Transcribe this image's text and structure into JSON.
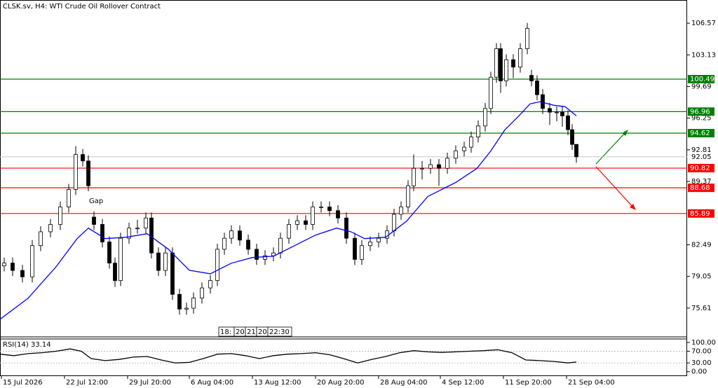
{
  "chart_data": {
    "type": "candlestick",
    "title": "CLSK.sv, H4:  WTI Crude Oil Rollover Contract",
    "xlim": [
      0,
      490
    ],
    "xticks": [
      {
        "value": 1,
        "label": "15 Jul 2026"
      },
      {
        "value": 46,
        "label": "22 Jul 12:00"
      },
      {
        "value": 91,
        "label": "29 Jul 20:00"
      },
      {
        "value": 135,
        "label": "6 Aug 04:00"
      },
      {
        "value": 180,
        "label": "13 Aug 12:00"
      },
      {
        "value": 225,
        "label": "20 Aug 20:00"
      },
      {
        "value": 270,
        "label": "28 Aug 04:00"
      },
      {
        "value": 314,
        "label": "4 Sep 12:00"
      },
      {
        "value": 359,
        "label": "11 Sep 20:00"
      },
      {
        "value": 404,
        "label": "21 Sep 04:00"
      }
    ],
    "ylim": [
      72.48,
      109.09
    ],
    "yticks": [
      106.57,
      103.13,
      99.69,
      96.25,
      92.81,
      89.37,
      82.49,
      79.05,
      75.61
    ],
    "grid": false,
    "candles": {
      "color": "#000000",
      "x": [
        3,
        9,
        16,
        23,
        29,
        36,
        43,
        49,
        54,
        59,
        63,
        67,
        73,
        78,
        82,
        86,
        92,
        98,
        104,
        108,
        113,
        118,
        123,
        128,
        133,
        138,
        144,
        150,
        155,
        160,
        165,
        171,
        177,
        183,
        189,
        195,
        200,
        206,
        212,
        218,
        223,
        229,
        235,
        241,
        247,
        253,
        258,
        264,
        270,
        276,
        281,
        286,
        291,
        295,
        301,
        307,
        313,
        319,
        325,
        331,
        336,
        341,
        346,
        350,
        354,
        357,
        361,
        366,
        371,
        376,
        379,
        383,
        387,
        392,
        397,
        401,
        405,
        408,
        411
      ],
      "open": [
        80.2,
        80.5,
        79.7,
        79.0,
        82.4,
        83.9,
        84.7,
        86.6,
        88.5,
        92.3,
        91.6,
        85.5,
        84.7,
        82.8,
        80.5,
        78.6,
        83.2,
        84.3,
        84.3,
        85.4,
        81.6,
        79.7,
        81.6,
        77.1,
        75.5,
        75.6,
        76.7,
        77.8,
        78.6,
        82.0,
        83.2,
        84.0,
        83.0,
        82.0,
        80.9,
        81.3,
        81.6,
        83.2,
        84.7,
        85.1,
        84.7,
        86.6,
        86.6,
        86.2,
        85.4,
        83.2,
        80.9,
        82.4,
        82.8,
        83.2,
        84.0,
        85.8,
        86.6,
        88.9,
        90.8,
        90.8,
        91.2,
        90.8,
        91.9,
        92.7,
        93.1,
        94.2,
        95.4,
        97.3,
        100.7,
        103.8,
        100.3,
        102.6,
        101.8,
        103.8,
        100.9,
        100.3,
        98.8,
        97.3,
        96.9,
        96.9,
        96.5,
        95.0,
        93.4
      ],
      "high": [
        81.1,
        81.1,
        80.3,
        83.0,
        84.5,
        85.3,
        87.2,
        89.1,
        93.2,
        92.9,
        92.2,
        86.1,
        85.3,
        83.4,
        81.1,
        83.8,
        84.9,
        85.2,
        86.0,
        86.0,
        82.2,
        82.2,
        82.2,
        77.7,
        76.2,
        77.3,
        78.4,
        79.2,
        82.6,
        83.8,
        84.6,
        84.6,
        83.6,
        82.6,
        81.9,
        82.2,
        83.8,
        85.3,
        85.7,
        85.7,
        87.2,
        87.2,
        87.2,
        86.8,
        86.0,
        83.8,
        83.0,
        83.4,
        83.8,
        84.6,
        86.4,
        87.2,
        89.5,
        92.3,
        91.6,
        91.8,
        91.8,
        92.5,
        93.3,
        93.7,
        94.8,
        96.0,
        97.9,
        101.3,
        104.4,
        104.4,
        103.2,
        103.2,
        104.4,
        106.6,
        101.5,
        100.9,
        99.4,
        97.9,
        97.5,
        97.6,
        97.1,
        95.6,
        93.4
      ],
      "low": [
        79.6,
        79.1,
        78.4,
        78.4,
        81.8,
        83.3,
        84.1,
        86.0,
        87.9,
        91.0,
        88.3,
        84.1,
        82.2,
        79.9,
        77.9,
        78.0,
        82.6,
        83.7,
        83.7,
        81.0,
        79.1,
        79.1,
        76.5,
        74.9,
        74.9,
        75.0,
        76.1,
        77.2,
        78.0,
        81.4,
        82.6,
        82.4,
        81.4,
        80.3,
        80.3,
        80.7,
        81.0,
        82.6,
        84.1,
        84.1,
        84.1,
        86.0,
        85.6,
        84.8,
        82.6,
        80.3,
        80.3,
        81.8,
        82.2,
        82.6,
        83.4,
        85.2,
        86.0,
        88.3,
        89.6,
        90.2,
        88.9,
        90.2,
        91.3,
        92.1,
        92.5,
        93.6,
        94.8,
        96.7,
        100.1,
        99.0,
        99.7,
        100.6,
        101.2,
        103.2,
        99.7,
        98.2,
        96.7,
        95.5,
        95.9,
        95.3,
        94.4,
        92.8,
        91.4
      ],
      "close": [
        80.5,
        79.7,
        79.0,
        82.4,
        83.9,
        84.7,
        86.6,
        88.5,
        92.3,
        91.6,
        88.9,
        84.7,
        82.8,
        80.5,
        78.6,
        83.2,
        84.3,
        84.3,
        85.4,
        81.6,
        79.7,
        81.6,
        77.1,
        75.5,
        75.6,
        76.7,
        77.8,
        78.6,
        82.0,
        83.2,
        84.0,
        83.0,
        82.0,
        80.9,
        81.3,
        81.6,
        83.2,
        84.7,
        85.1,
        84.7,
        86.6,
        86.6,
        86.2,
        85.4,
        83.2,
        80.9,
        82.4,
        82.8,
        83.2,
        84.0,
        85.8,
        86.6,
        88.9,
        90.8,
        90.8,
        91.2,
        90.8,
        91.9,
        92.7,
        93.1,
        94.2,
        95.4,
        97.3,
        100.7,
        103.8,
        100.3,
        102.6,
        101.8,
        103.8,
        106.0,
        100.3,
        98.8,
        97.3,
        96.9,
        96.9,
        96.5,
        95.0,
        93.4,
        92.05
      ]
    },
    "moving_average": {
      "color": "#0000ff",
      "x": [
        0,
        20,
        40,
        55,
        63,
        75,
        90,
        105,
        120,
        135,
        150,
        165,
        180,
        195,
        210,
        225,
        240,
        250,
        260,
        275,
        290,
        305,
        325,
        340,
        350,
        360,
        370,
        378,
        385,
        395,
        403,
        411
      ],
      "values": [
        74.38,
        76.67,
        80.1,
        83.16,
        84.3,
        83.16,
        83.31,
        83.69,
        82.01,
        79.72,
        79.34,
        80.49,
        81.1,
        81.25,
        82.39,
        83.54,
        84.3,
        83.92,
        83.16,
        83.31,
        85.06,
        87.73,
        89.26,
        90.78,
        92.69,
        94.98,
        96.5,
        97.8,
        98.03,
        97.65,
        97.5,
        96.5
      ]
    },
    "levels": [
      {
        "value": 100.49,
        "color": "#007f00"
      },
      {
        "value": 96.96,
        "color": "#007f00"
      },
      {
        "value": 94.62,
        "color": "#007f00"
      },
      {
        "value": 90.82,
        "color": "#ff0000"
      },
      {
        "value": 88.68,
        "color": "#ff0000"
      },
      {
        "value": 85.89,
        "color": "#ff0000"
      }
    ],
    "current_price": 92.05,
    "annotation": "Gap",
    "crosshair_labels": [
      "18:",
      "20",
      "21",
      "20",
      "22:30"
    ],
    "rsi": {
      "name": "RSI(14)",
      "color": "#000000",
      "ylim": [
        -15,
        112
      ],
      "yticks": [
        {
          "value": 100,
          "label": "100.00"
        },
        {
          "value": 70,
          "label": "70.00"
        },
        {
          "value": 30,
          "label": "30.00"
        },
        {
          "value": 0,
          "label": "0.00"
        }
      ],
      "x": [
        0,
        10,
        20,
        30,
        40,
        50,
        58,
        65,
        75,
        85,
        95,
        105,
        115,
        125,
        135,
        145,
        155,
        165,
        175,
        185,
        195,
        205,
        215,
        225,
        235,
        245,
        255,
        265,
        275,
        285,
        295,
        305,
        315,
        325,
        335,
        345,
        355,
        365,
        375,
        385,
        395,
        405,
        411
      ],
      "values": [
        60,
        55,
        62,
        65,
        70,
        78,
        70,
        45,
        38,
        42,
        50,
        52,
        40,
        30,
        32,
        45,
        60,
        62,
        55,
        45,
        55,
        60,
        62,
        65,
        58,
        45,
        30,
        42,
        52,
        65,
        72,
        68,
        66,
        68,
        70,
        72,
        75,
        65,
        40,
        38,
        35,
        30,
        33.14
      ]
    }
  }
}
